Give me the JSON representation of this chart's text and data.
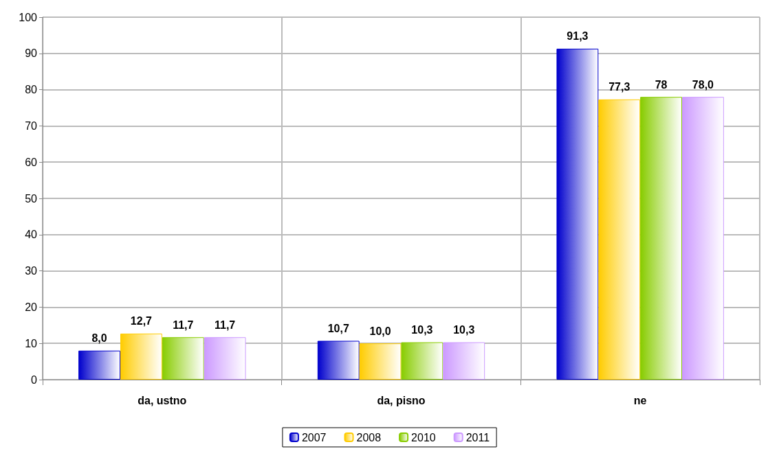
{
  "chart_data": {
    "type": "bar",
    "categories": [
      "da, ustno",
      "da, pisno",
      "ne"
    ],
    "series": [
      {
        "name": "2007",
        "color": "#0000cc",
        "values": [
          8.0,
          10.7,
          91.3
        ],
        "value_labels": [
          "8,0",
          "10,7",
          "91,3"
        ]
      },
      {
        "name": "2008",
        "color": "#ffcc00",
        "values": [
          12.7,
          10.0,
          77.3
        ],
        "value_labels": [
          "12,7",
          "10,0",
          "77,3"
        ]
      },
      {
        "name": "2010",
        "color": "#88cc00",
        "values": [
          11.7,
          10.3,
          78
        ],
        "value_labels": [
          "11,7",
          "10,3",
          "78"
        ]
      },
      {
        "name": "2011",
        "color": "#cc99ff",
        "values": [
          11.7,
          10.3,
          78.0
        ],
        "value_labels": [
          "11,7",
          "10,3",
          "78,0"
        ]
      }
    ],
    "ylim": [
      0,
      100
    ],
    "yticks": [
      0,
      10,
      20,
      30,
      40,
      50,
      60,
      70,
      80,
      90,
      100
    ],
    "grid": true,
    "legend": "bottom"
  }
}
